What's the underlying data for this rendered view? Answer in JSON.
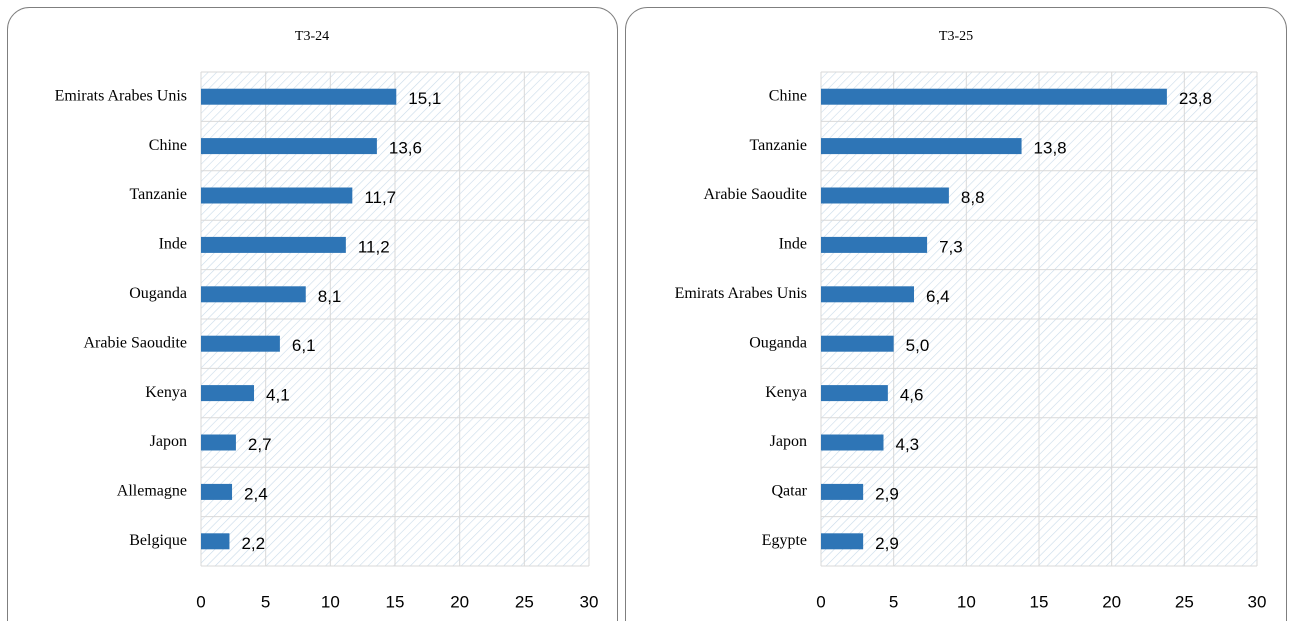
{
  "chart_data": [
    {
      "type": "bar",
      "orientation": "horizontal",
      "title": "T3-24",
      "categories": [
        "Emirats Arabes Unis",
        "Chine",
        "Tanzanie",
        "Inde",
        "Ouganda",
        "Arabie Saoudite",
        "Kenya",
        "Japon",
        "Allemagne",
        "Belgique"
      ],
      "values": [
        15.1,
        13.6,
        11.7,
        11.2,
        8.1,
        6.1,
        4.1,
        2.7,
        2.4,
        2.2
      ],
      "value_labels": [
        "15,1",
        "13,6",
        "11,7",
        "11,2",
        "8,1",
        "6,1",
        "4,1",
        "2,7",
        "2,4",
        "2,2"
      ],
      "color": "#2e75b6",
      "xlim": [
        0,
        30
      ],
      "xticks": [
        0,
        5,
        10,
        15,
        20,
        25,
        30
      ],
      "grid": true
    },
    {
      "type": "bar",
      "orientation": "horizontal",
      "title": "T3-25",
      "categories": [
        "Chine",
        "Tanzanie",
        "Arabie Saoudite",
        "Inde",
        "Emirats Arabes Unis",
        "Ouganda",
        "Kenya",
        "Japon",
        "Qatar",
        "Egypte"
      ],
      "values": [
        23.8,
        13.8,
        8.8,
        7.3,
        6.4,
        5.0,
        4.6,
        4.3,
        2.9,
        2.9
      ],
      "value_labels": [
        "23,8",
        "13,8",
        "8,8",
        "7,3",
        "6,4",
        "5,0",
        "4,6",
        "4,3",
        "2,9",
        "2,9"
      ],
      "color": "#2e75b6",
      "xlim": [
        0,
        30
      ],
      "xticks": [
        0,
        5,
        10,
        15,
        20,
        25,
        30
      ],
      "grid": true
    }
  ]
}
